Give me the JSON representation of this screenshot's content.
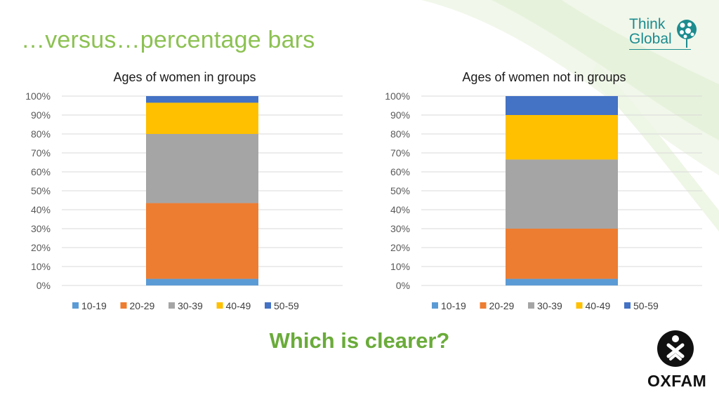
{
  "slide": {
    "title": "…versus…percentage bars",
    "question": "Which is clearer?"
  },
  "logos": {
    "think_global_line1": "Think",
    "think_global_line2": "Global",
    "oxfam": "OXFAM"
  },
  "colors": {
    "title_green": "#8cc152",
    "question_green": "#6aab3a",
    "think_global_teal": "#1c8c8f"
  },
  "chart_data": [
    {
      "type": "bar",
      "stacked": "percent",
      "title": "Ages of women in groups",
      "categories": [
        ""
      ],
      "ylim": [
        0,
        100
      ],
      "yticks": [
        "0%",
        "10%",
        "20%",
        "30%",
        "40%",
        "50%",
        "60%",
        "70%",
        "80%",
        "90%",
        "100%"
      ],
      "grid": true,
      "legend": "bottom",
      "series": [
        {
          "name": "10-19",
          "values": [
            3.5
          ],
          "color": "#5b9bd5"
        },
        {
          "name": "20-29",
          "values": [
            40
          ],
          "color": "#ed7d31"
        },
        {
          "name": "30-39",
          "values": [
            36.5
          ],
          "color": "#a5a5a5"
        },
        {
          "name": "40-49",
          "values": [
            16.5
          ],
          "color": "#ffc000"
        },
        {
          "name": "50-59",
          "values": [
            3.5
          ],
          "color": "#4472c4"
        }
      ]
    },
    {
      "type": "bar",
      "stacked": "percent",
      "title": "Ages of women not in groups",
      "categories": [
        ""
      ],
      "ylim": [
        0,
        100
      ],
      "yticks": [
        "0%",
        "10%",
        "20%",
        "30%",
        "40%",
        "50%",
        "60%",
        "70%",
        "80%",
        "90%",
        "100%"
      ],
      "grid": true,
      "legend": "bottom",
      "series": [
        {
          "name": "10-19",
          "values": [
            3.5
          ],
          "color": "#5b9bd5"
        },
        {
          "name": "20-29",
          "values": [
            26.5
          ],
          "color": "#ed7d31"
        },
        {
          "name": "30-39",
          "values": [
            36.5
          ],
          "color": "#a5a5a5"
        },
        {
          "name": "40-49",
          "values": [
            23.5
          ],
          "color": "#ffc000"
        },
        {
          "name": "50-59",
          "values": [
            10
          ],
          "color": "#4472c4"
        }
      ]
    }
  ]
}
